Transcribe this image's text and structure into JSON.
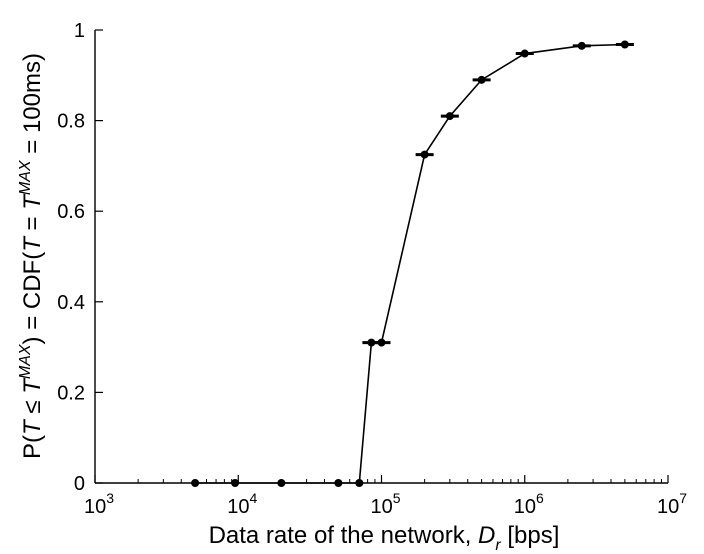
{
  "chart_data": {
    "type": "line",
    "title": "",
    "xlabel": {
      "main": "Data rate of the network, ",
      "var": "D",
      "sub": "r",
      "unit": " [bps]"
    },
    "ylabel": {
      "p1": "P(",
      "T1": "T",
      "le": " ≤ ",
      "T2": "T",
      "sup1": "MAX",
      "p2": ") = CDF(",
      "T3": "T",
      "eq": " = ",
      "T4": "T",
      "sup2": "MAX",
      "p3": " = 100ms)"
    },
    "xscale": "log",
    "xlim": [
      1000,
      10000000
    ],
    "ylim": [
      0,
      1
    ],
    "grid": false,
    "x_ticks": [
      {
        "value": 1000,
        "base": "10",
        "exp": "3"
      },
      {
        "value": 10000,
        "base": "10",
        "exp": "4"
      },
      {
        "value": 100000,
        "base": "10",
        "exp": "5"
      },
      {
        "value": 1000000,
        "base": "10",
        "exp": "6"
      },
      {
        "value": 10000000,
        "base": "10",
        "exp": "7"
      }
    ],
    "y_ticks": [
      {
        "value": 0,
        "label": "0"
      },
      {
        "value": 0.2,
        "label": "0.2"
      },
      {
        "value": 0.4,
        "label": "0.4"
      },
      {
        "value": 0.6,
        "label": "0.6"
      },
      {
        "value": 0.8,
        "label": "0.8"
      },
      {
        "value": 1,
        "label": "1"
      }
    ],
    "series": [
      {
        "x": [
          5000,
          9500,
          20000,
          50000,
          70000,
          85000,
          100000,
          200000,
          300000,
          500000,
          1000000,
          2500000,
          5000000
        ],
        "y": [
          0,
          0,
          0,
          0,
          0,
          0.31,
          0.31,
          0.725,
          0.81,
          0.89,
          0.948,
          0.965,
          0.968
        ],
        "errors": [
          0,
          0,
          0,
          0,
          0,
          0.0,
          0.0,
          0.0,
          0.0,
          0.0,
          0.0,
          0.0,
          0.0
        ]
      }
    ]
  }
}
